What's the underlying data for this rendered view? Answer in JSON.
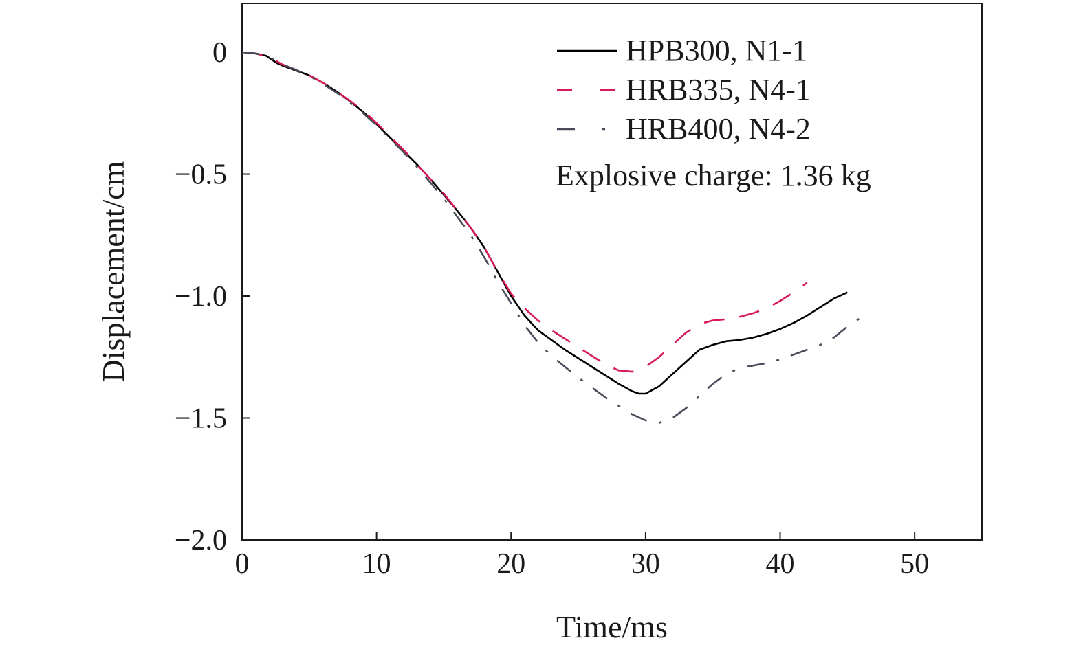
{
  "chart_data": {
    "type": "line",
    "title": "",
    "xlabel": "Time/ms",
    "ylabel": "Displacement/cm",
    "xlim": [
      0,
      55
    ],
    "ylim": [
      -2.0,
      0.2
    ],
    "xticks": [
      0,
      10,
      20,
      30,
      40,
      50
    ],
    "xtick_labels": [
      "0",
      "10",
      "20",
      "30",
      "40",
      "50"
    ],
    "yticks": [
      0,
      -0.5,
      -1.0,
      -1.5,
      -2.0
    ],
    "ytick_labels": [
      "0",
      "−0.5",
      "−1.0",
      "−1.5",
      "−2.0"
    ],
    "grid": false,
    "legend_position": "top-right",
    "annotation": "Explosive charge: 1.36 kg",
    "series": [
      {
        "name": "HPB300, N1-1",
        "color": "#000000",
        "dash": "solid",
        "x": [
          0,
          1,
          1.8,
          2.2,
          2.6,
          3,
          4,
          5,
          6,
          7,
          8,
          9,
          10,
          11,
          12,
          13,
          14,
          15,
          16,
          17,
          18,
          19,
          20,
          21,
          22,
          23,
          24,
          25,
          26,
          27,
          28,
          29,
          29.5,
          30,
          31,
          32,
          33,
          34,
          35,
          36,
          37,
          38,
          39,
          40,
          41,
          42,
          43,
          44,
          45
        ],
        "y": [
          0,
          -0.005,
          -0.015,
          -0.03,
          -0.045,
          -0.055,
          -0.075,
          -0.095,
          -0.125,
          -0.16,
          -0.2,
          -0.245,
          -0.295,
          -0.35,
          -0.405,
          -0.46,
          -0.52,
          -0.585,
          -0.65,
          -0.72,
          -0.8,
          -0.9,
          -1.0,
          -1.08,
          -1.14,
          -1.18,
          -1.22,
          -1.255,
          -1.29,
          -1.325,
          -1.36,
          -1.39,
          -1.4,
          -1.4,
          -1.37,
          -1.32,
          -1.27,
          -1.22,
          -1.2,
          -1.185,
          -1.18,
          -1.17,
          -1.155,
          -1.135,
          -1.11,
          -1.08,
          -1.045,
          -1.01,
          -0.985
        ]
      },
      {
        "name": "HRB335, N4-1",
        "color": "#d81b55",
        "dash": "long-dash",
        "x": [
          0,
          1,
          2,
          3,
          4,
          5,
          6,
          7,
          8,
          9,
          10,
          11,
          12,
          13,
          14,
          15,
          16,
          17,
          18,
          19,
          20,
          21,
          22,
          23,
          24,
          25,
          26,
          27,
          28,
          29,
          30,
          31,
          32,
          33,
          34,
          35,
          36,
          37,
          38,
          39,
          40,
          41,
          42
        ],
        "y": [
          0,
          -0.005,
          -0.02,
          -0.05,
          -0.072,
          -0.095,
          -0.125,
          -0.16,
          -0.198,
          -0.24,
          -0.29,
          -0.345,
          -0.4,
          -0.46,
          -0.52,
          -0.58,
          -0.65,
          -0.72,
          -0.8,
          -0.9,
          -0.99,
          -1.05,
          -1.1,
          -1.14,
          -1.175,
          -1.21,
          -1.245,
          -1.28,
          -1.305,
          -1.31,
          -1.29,
          -1.25,
          -1.2,
          -1.15,
          -1.115,
          -1.1,
          -1.095,
          -1.085,
          -1.07,
          -1.05,
          -1.02,
          -0.985,
          -0.945
        ]
      },
      {
        "name": "HRB400, N4-2",
        "color": "#4a4a5a",
        "dash": "dash-dot",
        "x": [
          0,
          1,
          2,
          3,
          4,
          5,
          6,
          7,
          8,
          9,
          10,
          11,
          12,
          13,
          14,
          15,
          16,
          17,
          18,
          19,
          20,
          21,
          22,
          23,
          24,
          25,
          26,
          27,
          28,
          29,
          30,
          31,
          32,
          33,
          34,
          35,
          36,
          37,
          38,
          39,
          40,
          41,
          42,
          43,
          44,
          45,
          46.5
        ],
        "y": [
          0,
          -0.005,
          -0.02,
          -0.05,
          -0.072,
          -0.097,
          -0.13,
          -0.165,
          -0.205,
          -0.25,
          -0.3,
          -0.355,
          -0.41,
          -0.47,
          -0.535,
          -0.6,
          -0.675,
          -0.75,
          -0.84,
          -0.94,
          -1.03,
          -1.12,
          -1.19,
          -1.245,
          -1.29,
          -1.335,
          -1.375,
          -1.415,
          -1.45,
          -1.485,
          -1.51,
          -1.52,
          -1.5,
          -1.46,
          -1.41,
          -1.36,
          -1.32,
          -1.295,
          -1.285,
          -1.275,
          -1.26,
          -1.24,
          -1.22,
          -1.2,
          -1.17,
          -1.125,
          -1.07
        ]
      }
    ]
  }
}
